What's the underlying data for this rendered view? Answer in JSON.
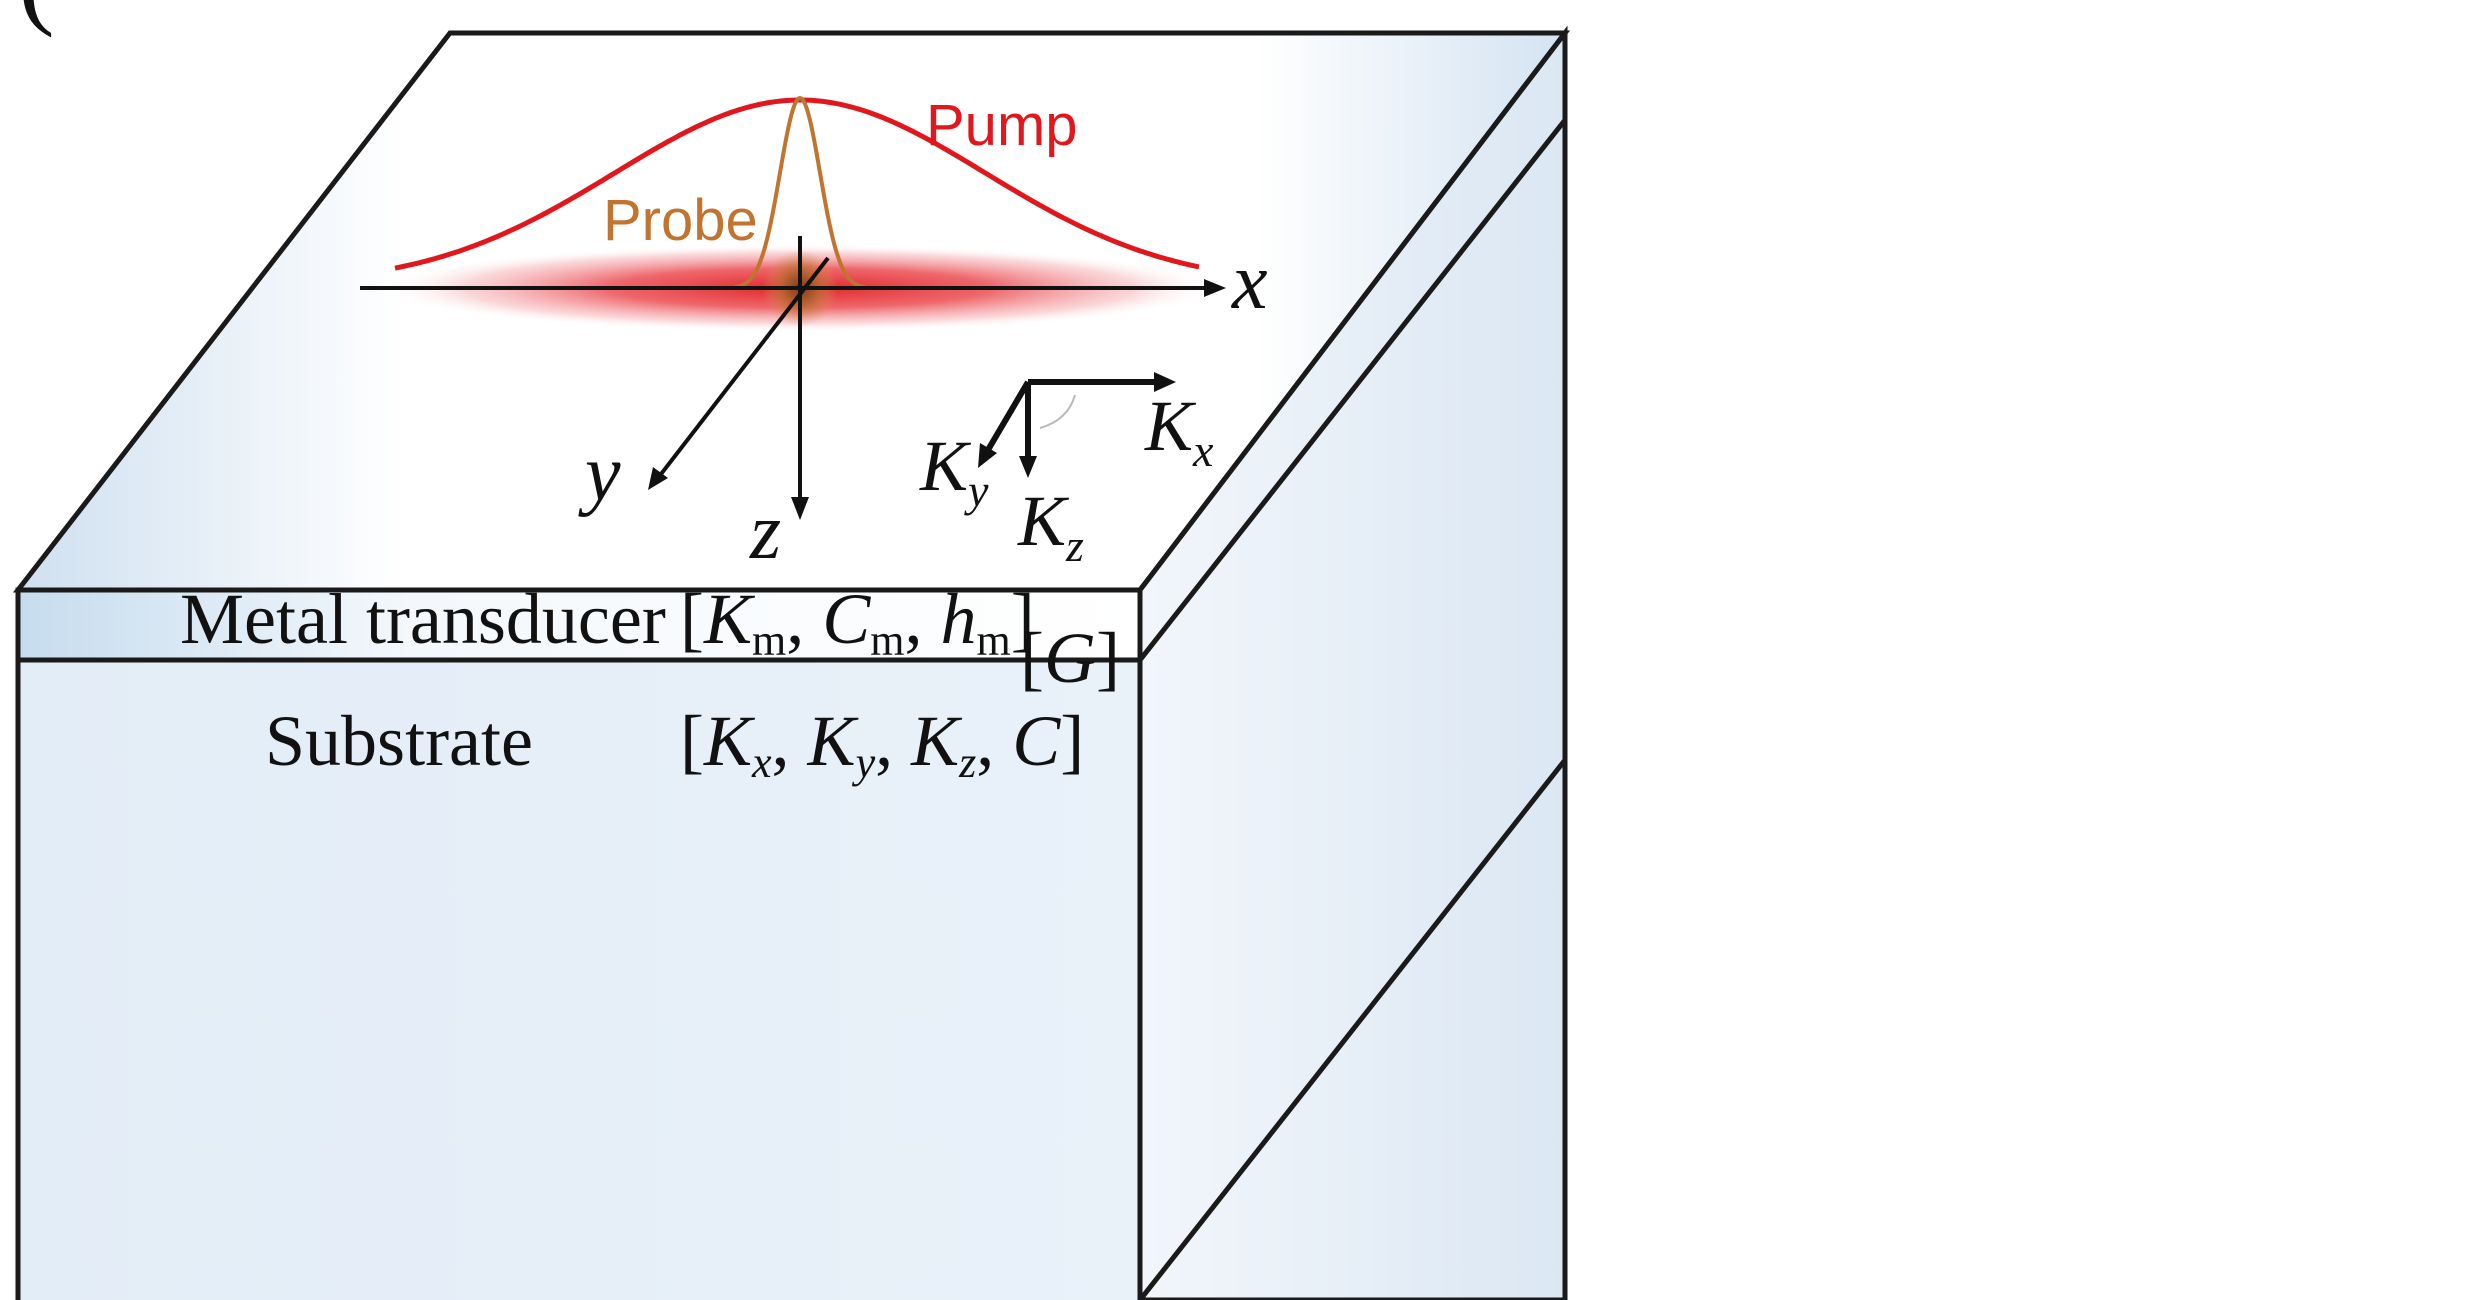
{
  "panel_marker": "(",
  "curves": {
    "pump_label": "Pump",
    "probe_label": "Probe",
    "pump_color": "#e0181d",
    "probe_color": "#c07430"
  },
  "axes": {
    "x_label": "x",
    "y_label": "y",
    "z_label": "z"
  },
  "conductivity_axes": {
    "kx_main": "K",
    "kx_sub": "x",
    "ky_main": "K",
    "ky_sub": "y",
    "kz_main": "K",
    "kz_sub": "z"
  },
  "layers": {
    "metal": {
      "name": "Metal transducer",
      "param_open": "[",
      "km_main": "K",
      "km_sub": "m",
      "sep1": ", ",
      "cm_main": "C",
      "cm_sub": "m",
      "sep2": ", ",
      "hm_main": "h",
      "hm_sub": "m",
      "param_close": "]"
    },
    "interface": {
      "open": "[",
      "g": "G",
      "close": "]"
    },
    "substrate": {
      "name": "Substrate",
      "param_open": "[",
      "kx_main": "K",
      "kx_sub": "x",
      "sep1": ", ",
      "ky_main": "K",
      "ky_sub": "y",
      "sep2": ", ",
      "kz_main": "K",
      "kz_sub": "z",
      "sep3": ", ",
      "c_main": "C",
      "param_close": "]"
    }
  },
  "colors": {
    "block_fill": "#dfe9f4",
    "block_edge": "#1a1a1a",
    "axis": "#111111",
    "text": "#111111"
  }
}
